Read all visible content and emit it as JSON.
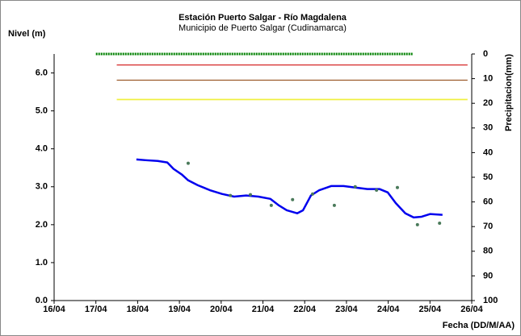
{
  "chart_data": {
    "type": "line",
    "title": "Estación Puerto Salgar - Río Magdalena",
    "subtitle": "Municipio de Puerto Salgar (Cudinamarca)",
    "y_label": "Nivel (m)",
    "y2_label": "Precipitacion(mm)",
    "x_label": "Fecha (DD/M/AA)",
    "xlim": [
      16,
      26
    ],
    "xticks": [
      {
        "value": 16,
        "label": "16/04"
      },
      {
        "value": 17,
        "label": "17/04"
      },
      {
        "value": 18,
        "label": "18/04"
      },
      {
        "value": 19,
        "label": "19/04"
      },
      {
        "value": 20,
        "label": "20/04"
      },
      {
        "value": 21,
        "label": "21/04"
      },
      {
        "value": 22,
        "label": "22/04"
      },
      {
        "value": 23,
        "label": "23/04"
      },
      {
        "value": 24,
        "label": "24/04"
      },
      {
        "value": 25,
        "label": "25/04"
      },
      {
        "value": 26,
        "label": "26/04"
      }
    ],
    "ylim": [
      0,
      6.5
    ],
    "yticks": [
      {
        "value": 0,
        "label": "0.0"
      },
      {
        "value": 1,
        "label": "1.0"
      },
      {
        "value": 2,
        "label": "2.0"
      },
      {
        "value": 3,
        "label": "3.0"
      },
      {
        "value": 4,
        "label": "4.0"
      },
      {
        "value": 5,
        "label": "5.0"
      },
      {
        "value": 6,
        "label": "6.0"
      }
    ],
    "y2lim": [
      100,
      0
    ],
    "y2ticks": [
      0,
      10,
      20,
      30,
      40,
      50,
      60,
      70,
      80,
      90,
      100
    ],
    "reference_lines": [
      {
        "value": 6.5,
        "x": [
          17,
          24.6
        ],
        "color": "#008000",
        "width": 3,
        "dash": true
      },
      {
        "value": 6.21,
        "x": [
          17.5,
          25.9
        ],
        "color": "#d62828",
        "width": 1.2
      },
      {
        "value": 5.81,
        "x": [
          17.5,
          25.9
        ],
        "color": "#9c5a2a",
        "width": 1.2
      },
      {
        "value": 5.3,
        "x": [
          17.5,
          25.9
        ],
        "color": "#f0f040",
        "width": 1.8
      }
    ],
    "series": [
      {
        "color": "#0000ee",
        "marker": "line",
        "x": [
          17.97,
          18.19,
          18.48,
          18.71,
          18.86,
          19.06,
          19.21,
          19.44,
          19.73,
          20.02,
          20.31,
          20.6,
          20.89,
          21.18,
          21.38,
          21.57,
          21.82,
          21.96,
          22.15,
          22.35,
          22.64,
          22.93,
          23.21,
          23.5,
          23.79,
          23.99,
          24.18,
          24.41,
          24.61,
          24.8,
          25.0,
          25.3
        ],
        "values": [
          3.72,
          3.7,
          3.68,
          3.64,
          3.47,
          3.32,
          3.17,
          3.04,
          2.91,
          2.81,
          2.74,
          2.77,
          2.74,
          2.68,
          2.51,
          2.38,
          2.3,
          2.38,
          2.77,
          2.91,
          3.02,
          3.02,
          2.98,
          2.94,
          2.94,
          2.85,
          2.57,
          2.3,
          2.19,
          2.21,
          2.28,
          2.26
        ]
      },
      {
        "color": "#4a7a5a",
        "marker": "dot",
        "x": [
          19.21,
          20.22,
          20.7,
          21.2,
          21.71,
          22.19,
          22.71,
          23.21,
          23.72,
          24.22,
          24.7,
          25.23
        ],
        "values": [
          3.62,
          2.77,
          2.79,
          2.51,
          2.66,
          2.81,
          2.51,
          3.0,
          2.91,
          2.98,
          2.0,
          2.04
        ]
      }
    ]
  }
}
